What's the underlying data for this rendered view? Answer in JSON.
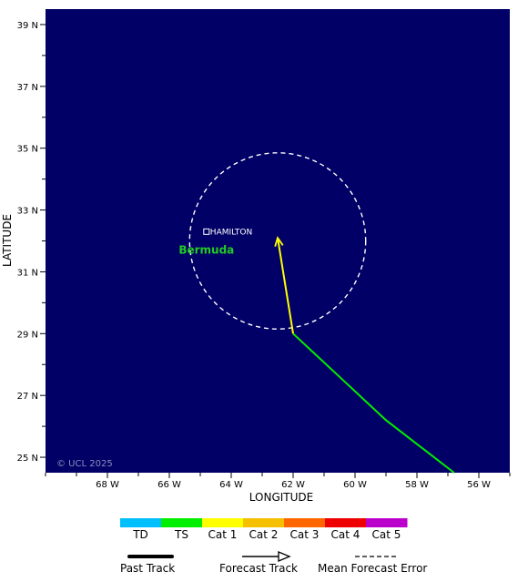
{
  "map": {
    "background_color": "#000066",
    "lon_range": [
      -70,
      -55
    ],
    "lat_range": [
      24.5,
      39.5
    ],
    "xlabel": "LONGITUDE",
    "ylabel": "LATITUDE",
    "copyright": "© UCL 2025",
    "lon_ticks": [
      {
        "lon": -68,
        "label": "68 W"
      },
      {
        "lon": -66,
        "label": "66 W"
      },
      {
        "lon": -64,
        "label": "64 W"
      },
      {
        "lon": -62,
        "label": "62 W"
      },
      {
        "lon": -60,
        "label": "60 W"
      },
      {
        "lon": -58,
        "label": "58 W"
      },
      {
        "lon": -56,
        "label": "56 W"
      }
    ],
    "lat_ticks": [
      {
        "lat": 39,
        "label": "39 N"
      },
      {
        "lat": 37,
        "label": "37 N"
      },
      {
        "lat": 35,
        "label": "35 N"
      },
      {
        "lat": 33,
        "label": "33 N"
      },
      {
        "lat": 31,
        "label": "31 N"
      },
      {
        "lat": 29,
        "label": "29 N"
      },
      {
        "lat": 27,
        "label": "27 N"
      },
      {
        "lat": 25,
        "label": "25 N"
      }
    ],
    "places": [
      {
        "name": "HAMILTON",
        "lon": -64.8,
        "lat": 32.3
      }
    ],
    "regions": [
      {
        "name": "Bermuda",
        "lon": -64.8,
        "lat": 31.8
      }
    ],
    "past_track": {
      "category": "TS",
      "color": "#00ee00",
      "points": [
        [
          -56.8,
          24.5
        ],
        [
          -59.0,
          26.2
        ],
        [
          -62.0,
          29.0
        ]
      ]
    },
    "forecast_track": {
      "category": "Cat 1",
      "color": "#ffff00",
      "points": [
        [
          -62.0,
          29.0
        ],
        [
          -62.5,
          32.1
        ]
      ]
    },
    "error_circle": {
      "center_lon": -62.5,
      "center_lat": 32.0,
      "radius_deg_lat": 2.85
    }
  },
  "legend": {
    "categories": [
      {
        "label": "TD",
        "color": "#00bfff"
      },
      {
        "label": "TS",
        "color": "#00ee00"
      },
      {
        "label": "Cat 1",
        "color": "#ffff00"
      },
      {
        "label": "Cat 2",
        "color": "#f5c000"
      },
      {
        "label": "Cat 3",
        "color": "#ff6600"
      },
      {
        "label": "Cat 4",
        "color": "#ee0000"
      },
      {
        "label": "Cat 5",
        "color": "#bb00cc"
      }
    ],
    "keys": [
      {
        "label": "Past Track",
        "style": "solid-thick"
      },
      {
        "label": "Forecast Track",
        "style": "arrow"
      },
      {
        "label": "Mean Forecast Error",
        "style": "dashed"
      }
    ]
  }
}
